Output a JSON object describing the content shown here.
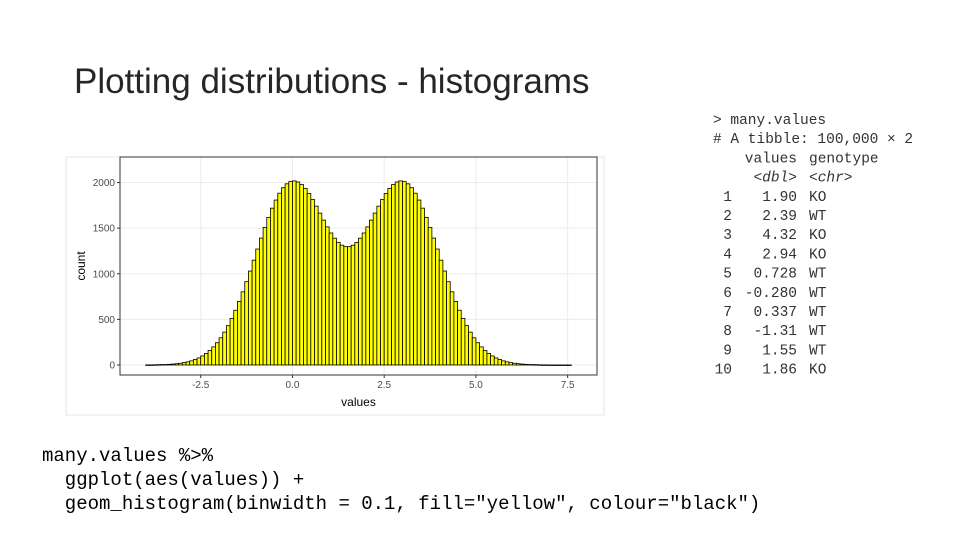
{
  "slide_title": "Plotting distributions - histograms",
  "chart_data": {
    "type": "histogram",
    "xlabel": "values",
    "ylabel": "count",
    "fill": "#ffff00",
    "edge_color": "#000000",
    "grid": true,
    "bins": [
      -4.0,
      -3.9,
      -3.8,
      -3.7,
      -3.6,
      -3.5,
      -3.4,
      -3.3,
      -3.2,
      -3.1,
      -3.0,
      -2.9,
      -2.8,
      -2.7,
      -2.6,
      -2.5,
      -2.4,
      -2.3,
      -2.2,
      -2.1,
      -2.0,
      -1.9,
      -1.8,
      -1.7,
      -1.6,
      -1.5,
      -1.4,
      -1.3,
      -1.2,
      -1.1,
      -1.0,
      -0.9,
      -0.8,
      -0.7,
      -0.6,
      -0.5,
      -0.4,
      -0.3,
      -0.2,
      -0.1,
      0.0,
      0.1,
      0.2,
      0.3,
      0.4,
      0.5,
      0.6,
      0.7,
      0.8,
      0.9,
      1.0,
      1.1,
      1.2,
      1.3,
      1.4,
      1.5,
      1.6,
      1.7,
      1.8,
      1.9,
      2.0,
      2.1,
      2.2,
      2.3,
      2.4,
      2.5,
      2.6,
      2.7,
      2.8,
      2.9,
      3.0,
      3.1,
      3.2,
      3.3,
      3.4,
      3.5,
      3.6,
      3.7,
      3.8,
      3.9,
      4.0,
      4.1,
      4.2,
      4.3,
      4.4,
      4.5,
      4.6,
      4.7,
      4.8,
      4.9,
      5.0,
      5.1,
      5.2,
      5.3,
      5.4,
      5.5,
      5.6,
      5.7,
      5.8,
      5.9,
      6.0,
      6.1,
      6.2,
      6.3,
      6.4,
      6.5,
      6.6,
      6.7,
      6.8,
      6.9,
      7.0,
      7.1,
      7.2,
      7.3,
      7.4,
      7.5,
      7.6
    ],
    "values": [
      1,
      1,
      2,
      3,
      4,
      5,
      7,
      10,
      14,
      19,
      26,
      34,
      45,
      60,
      77,
      99,
      126,
      159,
      198,
      244,
      298,
      360,
      431,
      511,
      600,
      697,
      802,
      913,
      1030,
      1149,
      1271,
      1391,
      1508,
      1618,
      1719,
      1808,
      1883,
      1943,
      1986,
      2011,
      2018,
      2006,
      1978,
      1936,
      1880,
      1814,
      1741,
      1665,
      1588,
      1514,
      1447,
      1390,
      1344,
      1313,
      1297,
      1297,
      1313,
      1344,
      1390,
      1447,
      1514,
      1588,
      1665,
      1741,
      1814,
      1880,
      1936,
      1978,
      2006,
      2018,
      2011,
      1986,
      1943,
      1883,
      1808,
      1719,
      1618,
      1508,
      1391,
      1271,
      1149,
      1030,
      913,
      802,
      697,
      600,
      511,
      431,
      360,
      298,
      244,
      198,
      159,
      126,
      99,
      77,
      60,
      45,
      34,
      26,
      19,
      14,
      10,
      7,
      5,
      4,
      3,
      2,
      1,
      1,
      0,
      0,
      0,
      0,
      0,
      0
    ],
    "xlim": [
      -4.7,
      8.3
    ],
    "ylim": [
      -110,
      2280
    ],
    "xticks": [
      {
        "value": -2.5,
        "label": "-2.5"
      },
      {
        "value": 0,
        "label": "0.0"
      },
      2.5,
      {
        "value": 5,
        "label": "5.0"
      },
      7.5
    ],
    "yticks": [
      0,
      500,
      1000,
      1500,
      2000
    ]
  },
  "console": {
    "command": "> many.values",
    "summary": "# A tibble: 100,000 × 2",
    "header": [
      "values",
      "genotype"
    ],
    "types": [
      "<dbl>",
      "<chr>"
    ],
    "rows": [
      [
        "1",
        "1.90",
        "KO"
      ],
      [
        "2",
        "2.39",
        "WT"
      ],
      [
        "3",
        "4.32",
        "KO"
      ],
      [
        "4",
        "2.94",
        "KO"
      ],
      [
        "5",
        "0.728",
        "WT"
      ],
      [
        "6",
        "-0.280",
        "WT"
      ],
      [
        "7",
        "0.337",
        "WT"
      ],
      [
        "8",
        "-1.31",
        "WT"
      ],
      [
        "9",
        "1.55",
        "WT"
      ],
      [
        "10",
        "1.86",
        "KO"
      ]
    ]
  },
  "code": [
    "many.values %>%",
    "  ggplot(aes(values)) +",
    "  geom_histogram(binwidth = 0.1, fill=\"yellow\", colour=\"black\")"
  ]
}
